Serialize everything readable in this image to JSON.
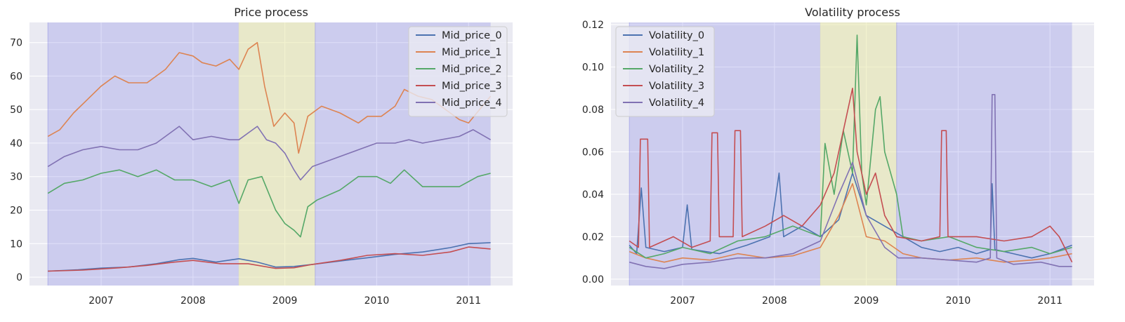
{
  "chart_data": [
    {
      "type": "line",
      "title": "Price process",
      "xlabel": "",
      "ylabel": "",
      "x_range": [
        2006.22,
        2011.48
      ],
      "ylim": [
        -2.5,
        76
      ],
      "x_ticks": [
        2007,
        2008,
        2009,
        2010,
        2011
      ],
      "x_tick_labels": [
        "2007",
        "2008",
        "2009",
        "2010",
        "2011"
      ],
      "y_ticks": [
        0,
        10,
        20,
        30,
        40,
        50,
        60,
        70
      ],
      "y_tick_labels": [
        "0",
        "10",
        "20",
        "30",
        "40",
        "50",
        "60",
        "70"
      ],
      "grid": true,
      "legend_position": "top-right",
      "shaded_regions": [
        {
          "start": 2006.42,
          "end": 2008.5,
          "color": "#6666dd",
          "opacity": 0.22
        },
        {
          "start": 2008.5,
          "end": 2009.33,
          "color": "#e6e6a0",
          "opacity": 0.5
        },
        {
          "start": 2009.33,
          "end": 2011.24,
          "color": "#6666dd",
          "opacity": 0.22
        }
      ],
      "series": [
        {
          "name": "Mid_price_0",
          "color": "#4c72b0",
          "x": [
            2006.42,
            2006.75,
            2007.0,
            2007.3,
            2007.6,
            2007.85,
            2008.0,
            2008.25,
            2008.5,
            2008.7,
            2008.9,
            2009.1,
            2009.3,
            2009.6,
            2009.9,
            2010.2,
            2010.5,
            2010.8,
            2011.0,
            2011.24
          ],
          "y": [
            1.8,
            2.2,
            2.7,
            3.0,
            4.0,
            5.2,
            5.6,
            4.5,
            5.5,
            4.5,
            3.0,
            3.2,
            3.8,
            4.8,
            5.8,
            6.8,
            7.5,
            8.8,
            10.0,
            10.3
          ]
        },
        {
          "name": "Mid_price_1",
          "color": "#dd8452",
          "x": [
            2006.42,
            2006.55,
            2006.7,
            2006.85,
            2007.0,
            2007.15,
            2007.3,
            2007.5,
            2007.7,
            2007.85,
            2008.0,
            2008.1,
            2008.25,
            2008.4,
            2008.5,
            2008.6,
            2008.7,
            2008.78,
            2008.88,
            2009.0,
            2009.1,
            2009.15,
            2009.25,
            2009.4,
            2009.6,
            2009.8,
            2009.9,
            2010.05,
            2010.2,
            2010.3,
            2010.45,
            2010.6,
            2010.75,
            2010.9,
            2011.0,
            2011.24
          ],
          "y": [
            42,
            44,
            49,
            53,
            57,
            60,
            58,
            58,
            62,
            67,
            66,
            64,
            63,
            65,
            62,
            68,
            70,
            57,
            45,
            49,
            46,
            37,
            48,
            51,
            49,
            46,
            48,
            48,
            51,
            56,
            54,
            53,
            50,
            47,
            46,
            54
          ]
        },
        {
          "name": "Mid_price_2",
          "color": "#55a868",
          "x": [
            2006.42,
            2006.6,
            2006.8,
            2007.0,
            2007.2,
            2007.4,
            2007.6,
            2007.8,
            2008.0,
            2008.2,
            2008.4,
            2008.5,
            2008.6,
            2008.75,
            2008.9,
            2009.0,
            2009.1,
            2009.17,
            2009.25,
            2009.35,
            2009.6,
            2009.8,
            2010.0,
            2010.15,
            2010.3,
            2010.5,
            2010.7,
            2010.9,
            2011.1,
            2011.24
          ],
          "y": [
            25,
            28,
            29,
            31,
            32,
            30,
            32,
            29,
            29,
            27,
            29,
            22,
            29,
            30,
            20,
            16,
            14,
            12,
            21,
            23,
            26,
            30,
            30,
            28,
            32,
            27,
            27,
            27,
            30,
            31
          ]
        },
        {
          "name": "Mid_price_3",
          "color": "#c44e52",
          "x": [
            2006.42,
            2006.8,
            2007.2,
            2007.5,
            2007.8,
            2008.0,
            2008.3,
            2008.6,
            2008.9,
            2009.1,
            2009.3,
            2009.6,
            2009.9,
            2010.2,
            2010.5,
            2010.8,
            2011.0,
            2011.24
          ],
          "y": [
            1.8,
            2.1,
            2.8,
            3.5,
            4.5,
            5.0,
            4.0,
            4.0,
            2.6,
            2.8,
            3.8,
            5.0,
            6.5,
            7.0,
            6.5,
            7.5,
            9.0,
            8.4
          ]
        },
        {
          "name": "Mid_price_4",
          "color": "#8172b3",
          "x": [
            2006.42,
            2006.6,
            2006.8,
            2007.0,
            2007.2,
            2007.4,
            2007.6,
            2007.85,
            2008.0,
            2008.2,
            2008.4,
            2008.5,
            2008.6,
            2008.7,
            2008.8,
            2008.9,
            2009.0,
            2009.1,
            2009.17,
            2009.3,
            2009.5,
            2009.8,
            2010.0,
            2010.2,
            2010.35,
            2010.5,
            2010.7,
            2010.9,
            2011.05,
            2011.24
          ],
          "y": [
            33,
            36,
            38,
            39,
            38,
            38,
            40,
            45,
            41,
            42,
            41,
            41,
            43,
            45,
            41,
            40,
            37,
            32,
            29,
            33,
            35,
            38,
            40,
            40,
            41,
            40,
            41,
            42,
            44,
            41
          ]
        }
      ]
    },
    {
      "type": "line",
      "title": "Volatility process",
      "xlabel": "",
      "ylabel": "",
      "x_range": [
        2006.22,
        2011.48
      ],
      "ylim": [
        -0.003,
        0.121
      ],
      "x_ticks": [
        2007,
        2008,
        2009,
        2010,
        2011
      ],
      "x_tick_labels": [
        "2007",
        "2008",
        "2009",
        "2010",
        "2011"
      ],
      "y_ticks": [
        0,
        0.02,
        0.04,
        0.06,
        0.08,
        0.1,
        0.12
      ],
      "y_tick_labels": [
        "0.00",
        "0.02",
        "0.04",
        "0.06",
        "0.08",
        "0.10",
        "0.12"
      ],
      "grid": true,
      "legend_position": "top-left",
      "shaded_regions": [
        {
          "start": 2006.42,
          "end": 2008.5,
          "color": "#6666dd",
          "opacity": 0.22
        },
        {
          "start": 2008.5,
          "end": 2009.33,
          "color": "#e6e6a0",
          "opacity": 0.5
        },
        {
          "start": 2009.33,
          "end": 2011.24,
          "color": "#6666dd",
          "opacity": 0.22
        }
      ],
      "series": [
        {
          "name": "Volatility_0",
          "color": "#4c72b0",
          "x": [
            2006.42,
            2006.5,
            2006.55,
            2006.6,
            2006.8,
            2007.0,
            2007.05,
            2007.1,
            2007.4,
            2007.7,
            2007.95,
            2008.05,
            2008.1,
            2008.3,
            2008.5,
            2008.7,
            2008.85,
            2009.0,
            2009.2,
            2009.4,
            2009.6,
            2009.8,
            2010.0,
            2010.2,
            2010.35,
            2010.37,
            2010.4,
            2010.6,
            2010.8,
            2011.0,
            2011.24
          ],
          "y": [
            0.016,
            0.012,
            0.043,
            0.015,
            0.013,
            0.015,
            0.035,
            0.014,
            0.012,
            0.016,
            0.02,
            0.05,
            0.02,
            0.025,
            0.02,
            0.028,
            0.05,
            0.03,
            0.025,
            0.02,
            0.015,
            0.013,
            0.015,
            0.012,
            0.014,
            0.045,
            0.014,
            0.012,
            0.01,
            0.012,
            0.016
          ]
        },
        {
          "name": "Volatility_1",
          "color": "#dd8452",
          "x": [
            2006.42,
            2006.6,
            2006.8,
            2007.0,
            2007.3,
            2007.6,
            2007.9,
            2008.2,
            2008.5,
            2008.7,
            2008.85,
            2009.0,
            2009.2,
            2009.4,
            2009.6,
            2009.9,
            2010.2,
            2010.5,
            2010.8,
            2011.0,
            2011.24
          ],
          "y": [
            0.013,
            0.01,
            0.008,
            0.01,
            0.009,
            0.012,
            0.01,
            0.011,
            0.015,
            0.03,
            0.045,
            0.02,
            0.018,
            0.012,
            0.01,
            0.009,
            0.01,
            0.008,
            0.009,
            0.01,
            0.012
          ]
        },
        {
          "name": "Volatility_2",
          "color": "#55a868",
          "x": [
            2006.42,
            2006.6,
            2006.8,
            2007.0,
            2007.3,
            2007.6,
            2007.9,
            2008.2,
            2008.5,
            2008.55,
            2008.65,
            2008.75,
            2008.85,
            2008.9,
            2008.95,
            2009.0,
            2009.1,
            2009.15,
            2009.2,
            2009.33,
            2009.4,
            2009.6,
            2009.9,
            2010.2,
            2010.5,
            2010.8,
            2011.0,
            2011.24
          ],
          "y": [
            0.015,
            0.01,
            0.012,
            0.015,
            0.012,
            0.018,
            0.02,
            0.025,
            0.02,
            0.064,
            0.04,
            0.07,
            0.05,
            0.115,
            0.05,
            0.035,
            0.08,
            0.086,
            0.06,
            0.04,
            0.02,
            0.018,
            0.02,
            0.015,
            0.013,
            0.015,
            0.012,
            0.015
          ]
        },
        {
          "name": "Volatility_3",
          "color": "#c44e52",
          "x": [
            2006.42,
            2006.52,
            2006.54,
            2006.62,
            2006.64,
            2006.9,
            2007.1,
            2007.3,
            2007.32,
            2007.38,
            2007.4,
            2007.55,
            2007.57,
            2007.63,
            2007.65,
            2007.9,
            2008.1,
            2008.3,
            2008.5,
            2008.65,
            2008.85,
            2008.9,
            2009.0,
            2009.1,
            2009.2,
            2009.33,
            2009.6,
            2009.8,
            2009.82,
            2009.87,
            2009.89,
            2010.2,
            2010.5,
            2010.8,
            2011.0,
            2011.1,
            2011.24
          ],
          "y": [
            0.018,
            0.015,
            0.066,
            0.066,
            0.015,
            0.02,
            0.015,
            0.018,
            0.069,
            0.069,
            0.02,
            0.02,
            0.07,
            0.07,
            0.02,
            0.025,
            0.03,
            0.025,
            0.035,
            0.05,
            0.09,
            0.06,
            0.04,
            0.05,
            0.03,
            0.02,
            0.018,
            0.02,
            0.07,
            0.07,
            0.02,
            0.02,
            0.018,
            0.02,
            0.025,
            0.02,
            0.008
          ]
        },
        {
          "name": "Volatility_4",
          "color": "#8172b3",
          "x": [
            2006.42,
            2006.6,
            2006.8,
            2007.0,
            2007.3,
            2007.6,
            2007.9,
            2008.2,
            2008.5,
            2008.7,
            2008.85,
            2009.0,
            2009.2,
            2009.35,
            2009.6,
            2009.9,
            2010.2,
            2010.35,
            2010.37,
            2010.4,
            2010.42,
            2010.6,
            2010.9,
            2011.1,
            2011.24
          ],
          "y": [
            0.008,
            0.006,
            0.005,
            0.007,
            0.008,
            0.01,
            0.01,
            0.012,
            0.018,
            0.04,
            0.055,
            0.03,
            0.015,
            0.01,
            0.01,
            0.009,
            0.008,
            0.01,
            0.087,
            0.087,
            0.01,
            0.007,
            0.008,
            0.006,
            0.006
          ]
        }
      ]
    }
  ]
}
